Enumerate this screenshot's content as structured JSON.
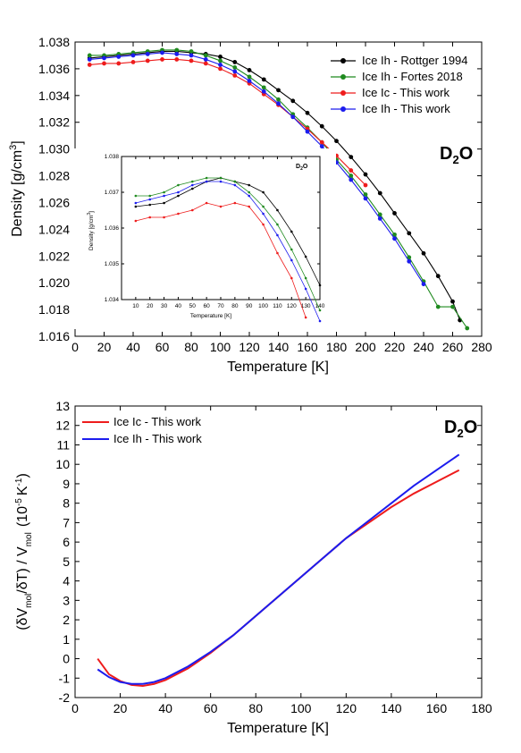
{
  "chart_data": [
    {
      "type": "line",
      "panel": "top",
      "xlabel": "Temperature [K]",
      "ylabel_text": "Density [g/cm",
      "ylabel_sup": "3",
      "ylabel_close": "]",
      "xlim": [
        0,
        280
      ],
      "ylim": [
        1.016,
        1.038
      ],
      "xticks": [
        "0",
        "20",
        "40",
        "60",
        "80",
        "100",
        "120",
        "140",
        "160",
        "180",
        "200",
        "220",
        "240",
        "260",
        "280"
      ],
      "yticks": [
        "1.016",
        "1.018",
        "1.020",
        "1.022",
        "1.024",
        "1.026",
        "1.028",
        "1.030",
        "1.032",
        "1.034",
        "1.036",
        "1.038"
      ],
      "label_main": "D",
      "label_sub": "2",
      "label_end": "O",
      "legend_position": "top-right",
      "series": [
        {
          "name": "Ice Ih - Rottger 1994",
          "color": "#000000",
          "x": [
            10,
            20,
            30,
            40,
            50,
            60,
            70,
            80,
            90,
            100,
            110,
            120,
            130,
            140,
            150,
            160,
            170,
            180,
            190,
            200,
            210,
            220,
            230,
            240,
            250,
            260,
            265
          ],
          "y": [
            1.0368,
            1.0369,
            1.037,
            1.0371,
            1.0372,
            1.0373,
            1.0373,
            1.0372,
            1.0371,
            1.0369,
            1.0365,
            1.0359,
            1.0352,
            1.0344,
            1.0336,
            1.0327,
            1.0317,
            1.0306,
            1.0294,
            1.0281,
            1.0267,
            1.0252,
            1.0237,
            1.0222,
            1.0205,
            1.0186,
            1.0172
          ]
        },
        {
          "name": "Ice Ih - Fortes 2018",
          "color": "#1f8a1f",
          "x": [
            10,
            20,
            30,
            40,
            50,
            60,
            70,
            80,
            90,
            100,
            110,
            120,
            130,
            140,
            150,
            160,
            170,
            180,
            190,
            200,
            210,
            220,
            230,
            240,
            250,
            260,
            270
          ],
          "y": [
            1.037,
            1.037,
            1.0371,
            1.0372,
            1.0373,
            1.0374,
            1.0374,
            1.0373,
            1.037,
            1.0366,
            1.0361,
            1.0354,
            1.0346,
            1.0337,
            1.0326,
            1.0316,
            1.0305,
            1.0292,
            1.028,
            1.0266,
            1.0251,
            1.0236,
            1.0219,
            1.0201,
            1.0182,
            1.0182,
            1.0166
          ]
        },
        {
          "name": "Ice Ic - This work",
          "color": "#ee1c1c",
          "x": [
            10,
            20,
            30,
            40,
            50,
            60,
            70,
            80,
            90,
            100,
            110,
            120,
            130,
            140,
            150,
            160,
            170,
            180,
            190,
            200
          ],
          "y": [
            1.0363,
            1.0364,
            1.0364,
            1.0365,
            1.0366,
            1.0367,
            1.0367,
            1.0366,
            1.0364,
            1.036,
            1.0355,
            1.0349,
            1.0341,
            1.0333,
            1.0324,
            1.0315,
            1.0305,
            1.0295,
            1.0284,
            1.0273
          ]
        },
        {
          "name": "Ice Ih - This work",
          "color": "#1c1cee",
          "x": [
            10,
            20,
            30,
            40,
            50,
            60,
            70,
            80,
            90,
            100,
            110,
            120,
            130,
            140,
            150,
            160,
            170,
            180,
            190,
            200,
            210,
            220,
            230,
            240
          ],
          "y": [
            1.0367,
            1.0368,
            1.0369,
            1.037,
            1.0371,
            1.0372,
            1.0371,
            1.037,
            1.0367,
            1.0363,
            1.0358,
            1.0351,
            1.0343,
            1.0334,
            1.0324,
            1.0313,
            1.0302,
            1.029,
            1.0277,
            1.0263,
            1.0248,
            1.0233,
            1.0216,
            1.0199
          ]
        }
      ]
    },
    {
      "type": "line",
      "panel": "inset",
      "xlabel": "Temperature [K]",
      "ylabel_text": "Density [g/cm",
      "ylabel_sup": "3",
      "ylabel_close": "]",
      "xlim": [
        0,
        140
      ],
      "ylim": [
        1.034,
        1.038
      ],
      "xticks": [
        "10",
        "20",
        "30",
        "40",
        "50",
        "60",
        "70",
        "80",
        "90",
        "100",
        "110",
        "120",
        "130",
        "140"
      ],
      "yticks": [
        "1.034",
        "1.035",
        "1.036",
        "1.037",
        "1.038"
      ],
      "label_main": "D",
      "label_sub": "2",
      "label_end": "O",
      "series": [
        {
          "name": "Ice Ih - Rottger 1994",
          "color": "#000000",
          "x": [
            10,
            20,
            30,
            40,
            50,
            60,
            70,
            80,
            90,
            100,
            110,
            120,
            130,
            140
          ],
          "y": [
            1.0366,
            1.03665,
            1.0367,
            1.0369,
            1.0371,
            1.0373,
            1.0374,
            1.0373,
            1.0372,
            1.037,
            1.0365,
            1.0359,
            1.0352,
            1.0344
          ]
        },
        {
          "name": "Ice Ih - Fortes 2018",
          "color": "#1f8a1f",
          "x": [
            10,
            20,
            30,
            40,
            50,
            60,
            70,
            80,
            90,
            100,
            110,
            120,
            130,
            140
          ],
          "y": [
            1.0369,
            1.0369,
            1.037,
            1.0372,
            1.0373,
            1.0374,
            1.0374,
            1.0373,
            1.037,
            1.0366,
            1.0361,
            1.0354,
            1.0346,
            1.0337
          ]
        },
        {
          "name": "Ice Ic - This work",
          "color": "#ee1c1c",
          "x": [
            10,
            20,
            30,
            40,
            50,
            60,
            70,
            80,
            90,
            100,
            110,
            120,
            130
          ],
          "y": [
            1.0362,
            1.0363,
            1.0363,
            1.0364,
            1.0365,
            1.0367,
            1.0366,
            1.0367,
            1.0366,
            1.0361,
            1.0353,
            1.0346,
            1.0335
          ]
        },
        {
          "name": "Ice Ih - This work",
          "color": "#1c1cee",
          "x": [
            10,
            20,
            30,
            40,
            50,
            60,
            70,
            80,
            90,
            100,
            110,
            120,
            130,
            140
          ],
          "y": [
            1.0367,
            1.0368,
            1.0369,
            1.037,
            1.0372,
            1.0373,
            1.0373,
            1.0372,
            1.0369,
            1.0364,
            1.0358,
            1.0351,
            1.0343,
            1.0334
          ]
        }
      ]
    },
    {
      "type": "line",
      "panel": "bottom",
      "xlabel": "Temperature [K]",
      "ylabel_text": "(δV",
      "ylabel_sub1": "mol",
      "ylabel_mid": "/δT) / V",
      "ylabel_sub2": "mol",
      "ylabel_unit": "(10",
      "ylabel_sup": "-5",
      "ylabel_unit_end": "K",
      "ylabel_sup2": "-1",
      "ylabel_close": ")",
      "xlim": [
        0,
        180
      ],
      "ylim": [
        -2,
        13
      ],
      "xticks": [
        "0",
        "20",
        "40",
        "60",
        "80",
        "100",
        "120",
        "140",
        "160",
        "180"
      ],
      "yticks": [
        "-2",
        "-1",
        "0",
        "1",
        "2",
        "3",
        "4",
        "5",
        "6",
        "7",
        "8",
        "9",
        "10",
        "11",
        "12",
        "13"
      ],
      "label_main": "D",
      "label_sub": "2",
      "label_end": "O",
      "legend_position": "top-left",
      "series": [
        {
          "name": "Ice Ic - This work",
          "color": "#ee1c1c",
          "x": [
            10,
            15,
            20,
            25,
            30,
            35,
            40,
            50,
            60,
            70,
            80,
            90,
            100,
            110,
            120,
            130,
            140,
            150,
            160,
            170
          ],
          "y": [
            0.0,
            -0.8,
            -1.15,
            -1.35,
            -1.4,
            -1.3,
            -1.1,
            -0.5,
            0.3,
            1.2,
            2.2,
            3.2,
            4.2,
            5.2,
            6.2,
            7.0,
            7.8,
            8.5,
            9.1,
            9.7
          ]
        },
        {
          "name": "Ice Ih - This work",
          "color": "#1c1cee",
          "x": [
            10,
            15,
            20,
            25,
            30,
            35,
            40,
            50,
            60,
            70,
            80,
            90,
            100,
            110,
            120,
            130,
            140,
            150,
            160,
            170
          ],
          "y": [
            -0.55,
            -0.95,
            -1.2,
            -1.3,
            -1.3,
            -1.2,
            -1.0,
            -0.4,
            0.35,
            1.2,
            2.2,
            3.2,
            4.2,
            5.2,
            6.2,
            7.1,
            8.0,
            8.9,
            9.7,
            10.5
          ]
        }
      ]
    }
  ]
}
